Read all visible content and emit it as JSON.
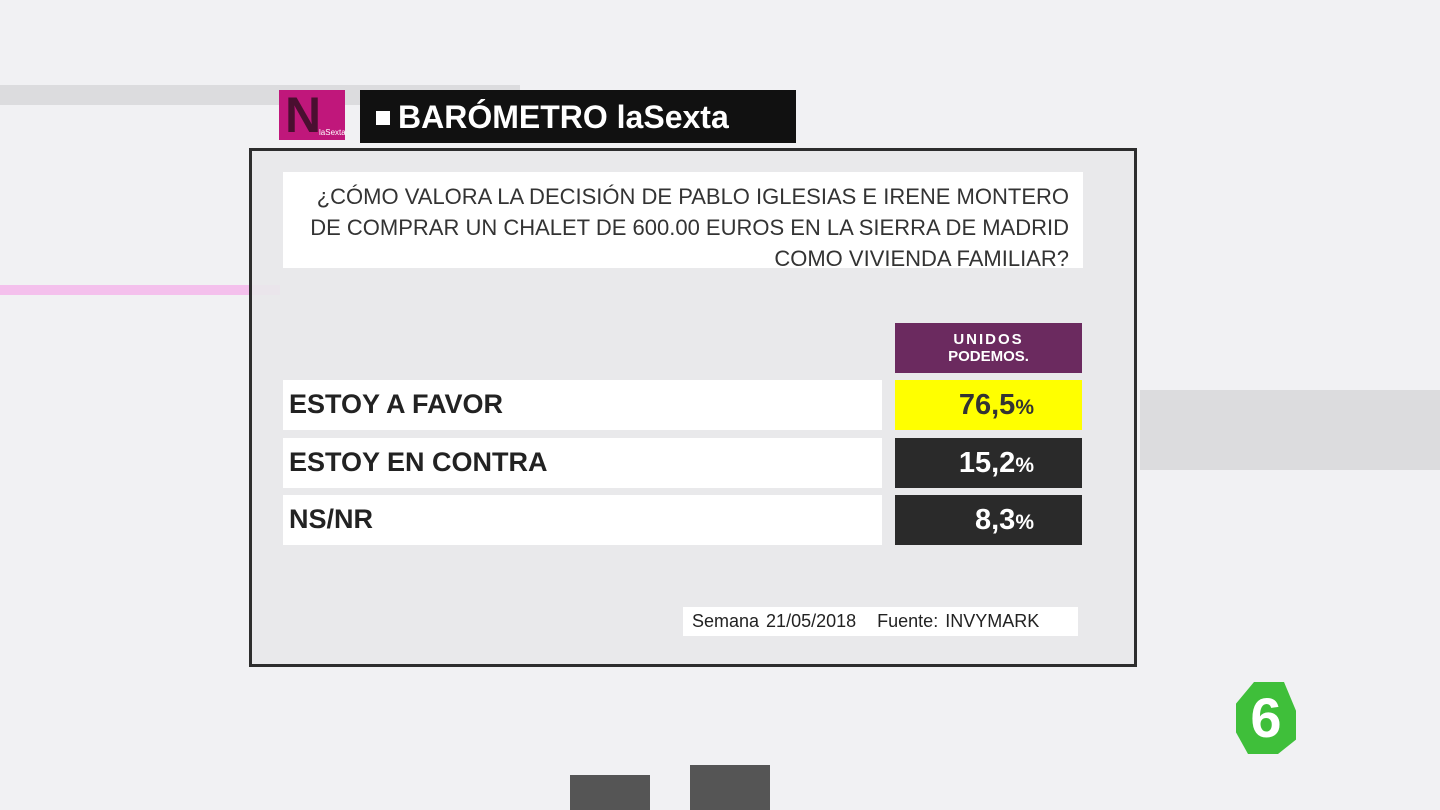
{
  "header": {
    "logo_letter": "N",
    "logo_sub": "laSexta",
    "title": "BARÓMETRO laSexta"
  },
  "question": [
    "¿CÓMO VALORA LA DECISIÓN DE PABLO IGLESIAS E IRENE MONTERO",
    "DE COMPRAR UN CHALET DE 600.00 EUROS EN LA SIERRA DE MADRID",
    "COMO VIVIENDA FAMILIAR?"
  ],
  "party": [
    "UNIDOS",
    "PODEMOS."
  ],
  "table": {
    "rows": [
      {
        "label": "ESTOY A FAVOR",
        "value": "76,5",
        "unit": "%"
      },
      {
        "label": "ESTOY EN CONTRA",
        "value": "15,2",
        "unit": "%"
      },
      {
        "label": "NS/NR",
        "value": "8,3",
        "unit": "%"
      }
    ]
  },
  "footer": {
    "date": "Semana 21/05/2018",
    "source": "Fuente: INVYMARK"
  },
  "channel_logo": "6"
}
